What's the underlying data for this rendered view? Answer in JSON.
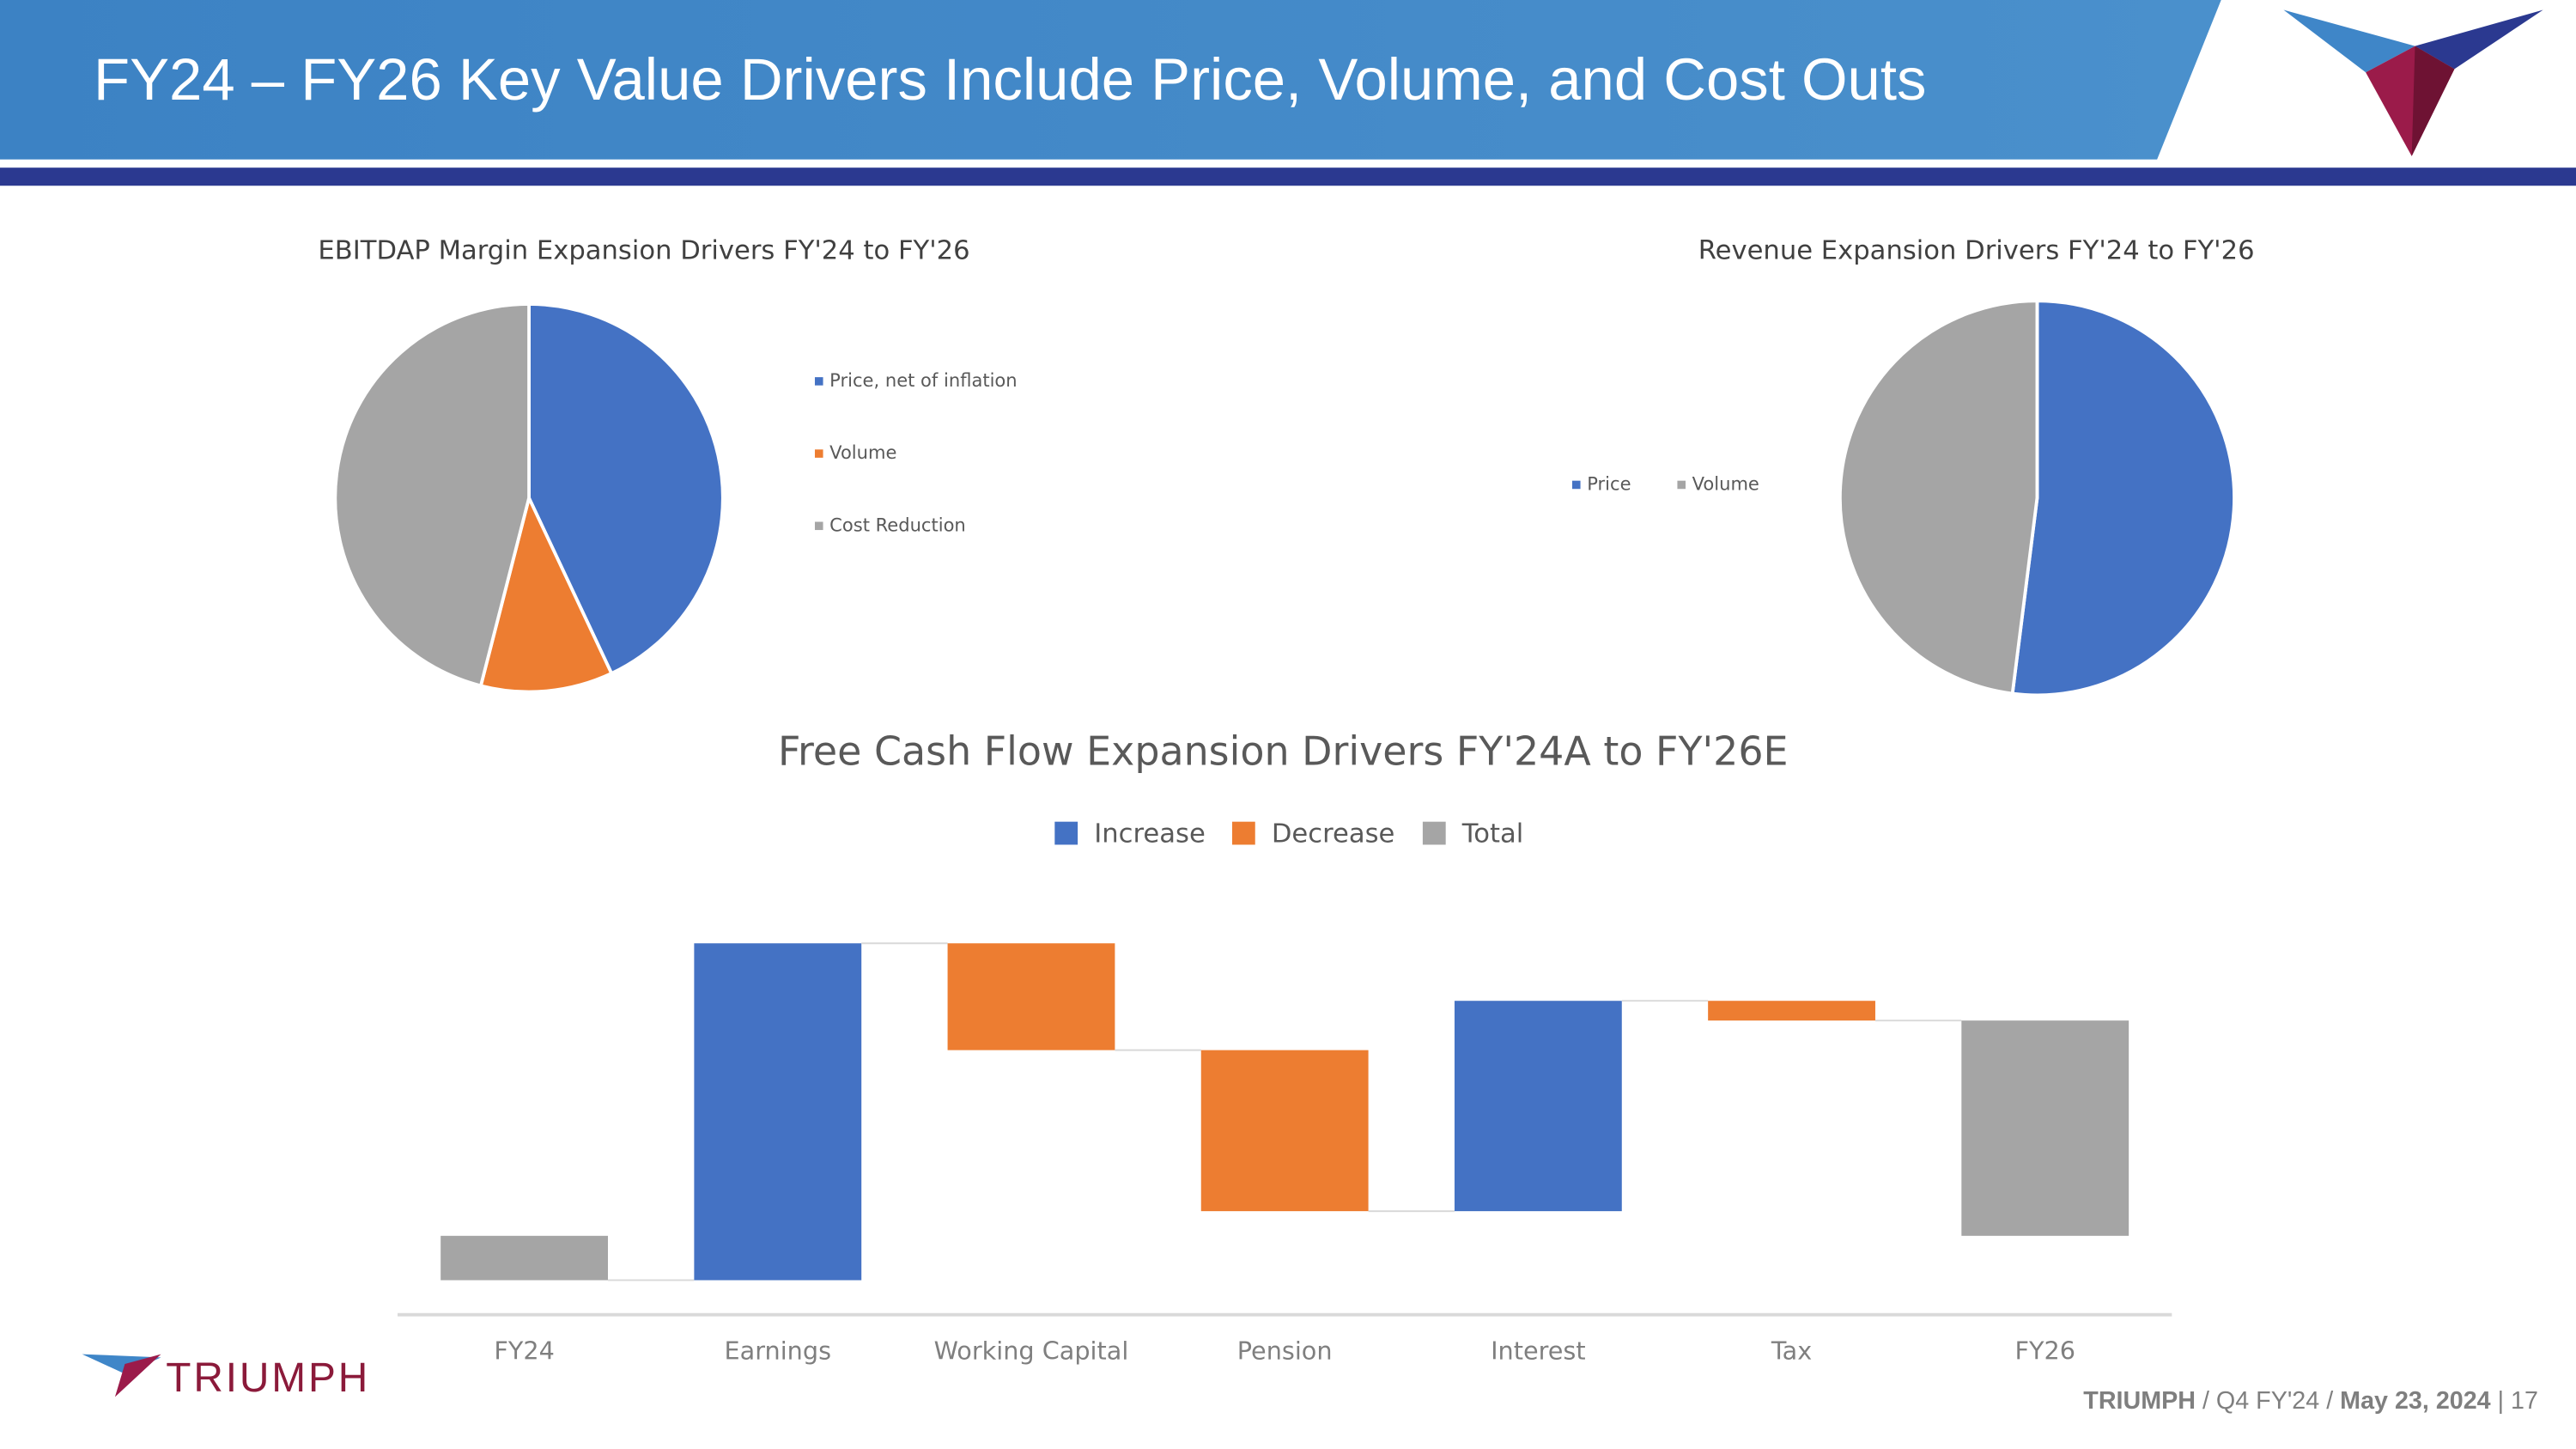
{
  "header": {
    "title": "FY24 – FY26 Key Value Drivers Include Price, Volume, and Cost Outs"
  },
  "logo": {
    "text": "TRIUMPH"
  },
  "footer": {
    "company": "TRIUMPH",
    "separator": "/",
    "quarter": "Q4 FY'24",
    "date": "May 23, 2024",
    "page_separator": "|",
    "page": 17
  },
  "chart_data": [
    {
      "type": "pie",
      "title": "EBITDAP Margin Expansion Drivers FY'24 to FY'26",
      "categories": [
        "Price, net of inflation",
        "Volume",
        "Cost Reduction"
      ],
      "values": [
        43,
        11,
        46
      ],
      "colors": [
        "#4472c4",
        "#ed7d31",
        "#a5a5a5"
      ],
      "legend": "right-vertical"
    },
    {
      "type": "pie",
      "title": "Revenue Expansion Drivers FY'24 to FY'26",
      "categories": [
        "Price",
        "Volume"
      ],
      "values": [
        52,
        48
      ],
      "colors": [
        "#4472c4",
        "#a5a5a5"
      ],
      "legend": "left-horizontal"
    },
    {
      "type": "waterfall",
      "title": "Free Cash Flow Expansion Drivers FY'24A to FY'26E",
      "categories": [
        "FY24",
        "Earnings",
        "Working Capital",
        "Pension",
        "Interest",
        "Tax",
        "FY26"
      ],
      "values": [
        -27,
        205,
        -65,
        -98,
        128,
        -12,
        131
      ],
      "totals": [
        0,
        6
      ],
      "series": [
        {
          "name": "Increase",
          "color": "#4472c4"
        },
        {
          "name": "Decrease",
          "color": "#ed7d31"
        },
        {
          "name": "Total",
          "color": "#a5a5a5"
        }
      ],
      "ylim": [
        -48,
        212
      ]
    }
  ]
}
